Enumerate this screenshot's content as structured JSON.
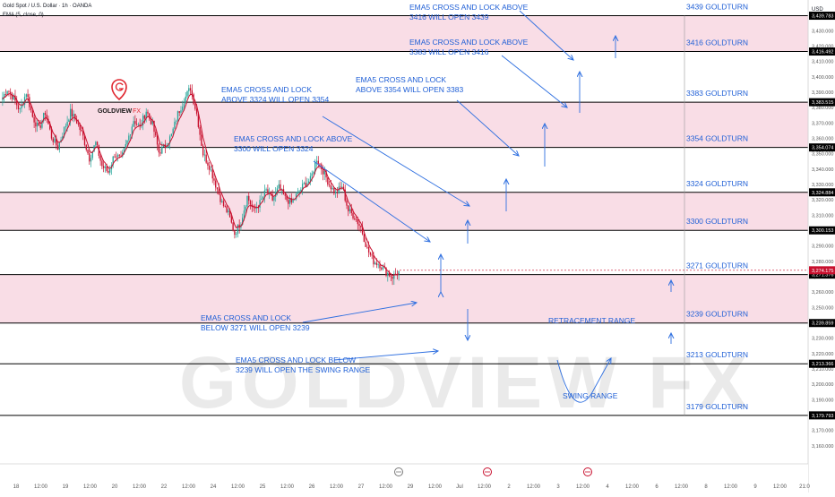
{
  "header": {
    "symbol_line": "Gold Spot / U.S. Dollar · 1h · OANDA",
    "indicator_line": "EMA (5, close, 0)",
    "currency": "USD"
  },
  "logo": {
    "name_dark": "GOLDVIEW",
    "name_accent": "FX"
  },
  "watermark": "GOLDVIEW FX",
  "colors": {
    "zone_fill": "#f9dde6",
    "candle_up": "#26a69a",
    "candle_down": "#c8102e",
    "line_black": "#000000",
    "annotation_blue": "#2e6fe0",
    "label_blue": "#1f5fd6",
    "logo_red": "#e0262f",
    "watermark": "#d9d9d9"
  },
  "chart_data": {
    "type": "candlestick",
    "ylim": [
      3150,
      3450
    ],
    "yticks": [
      3160,
      3170,
      3180,
      3190,
      3200,
      3210,
      3220,
      3230,
      3240,
      3250,
      3260,
      3270,
      3280,
      3290,
      3300,
      3310,
      3320,
      3330,
      3340,
      3350,
      3360,
      3370,
      3380,
      3390,
      3400,
      3410,
      3420,
      3430,
      3440
    ],
    "x_ticks": [
      "18",
      "12:00",
      "19",
      "12:00",
      "20",
      "12:00",
      "22",
      "12:00",
      "24",
      "12:00",
      "25",
      "12:00",
      "26",
      "12:00",
      "27",
      "12:00",
      "29",
      "12:00",
      "Jul",
      "12:00",
      "2",
      "12:00",
      "3",
      "12:00",
      "4",
      "12:00",
      "6",
      "12:00",
      "8",
      "12:00",
      "9",
      "12:00",
      "21:0"
    ],
    "price_path": [
      3385,
      3392,
      3386,
      3378,
      3390,
      3374,
      3366,
      3377,
      3361,
      3354,
      3366,
      3377,
      3371,
      3361,
      3347,
      3357,
      3342,
      3338,
      3350,
      3346,
      3358,
      3372,
      3367,
      3378,
      3369,
      3351,
      3355,
      3362,
      3376,
      3385,
      3393,
      3376,
      3350,
      3342,
      3330,
      3318,
      3311,
      3298,
      3306,
      3322,
      3313,
      3318,
      3326,
      3320,
      3328,
      3321,
      3318,
      3324,
      3330,
      3333,
      3347,
      3339,
      3330,
      3324,
      3329,
      3313,
      3309,
      3302,
      3288,
      3280,
      3278,
      3273,
      3270,
      3273
    ],
    "levels": [
      {
        "label": "3439 GOLDTURN",
        "price": 3439.783,
        "price_text": "3,439.783"
      },
      {
        "label": "3416 GOLDTURN",
        "price": 3416.492,
        "price_text": "3,416.492"
      },
      {
        "label": "3383 GOLDTURN",
        "price": 3383.515,
        "price_text": "3,383.515"
      },
      {
        "label": "3354 GOLDTURN",
        "price": 3354.074,
        "price_text": "3,354.074"
      },
      {
        "label": "3324 GOLDTURN",
        "price": 3324.884,
        "price_text": "3,324.884"
      },
      {
        "label": "3300 GOLDTURN",
        "price": 3300.153,
        "price_text": "3,300.153"
      },
      {
        "label": "3271 GOLDTURN",
        "price": 3271.376,
        "price_text": "3,271.376"
      },
      {
        "label": "3239 GOLDTURN",
        "price": 3239.859,
        "price_text": "3,239.859"
      },
      {
        "label": "3213 GOLDTURN",
        "price": 3213.366,
        "price_text": "3,213.366"
      },
      {
        "label": "3179 GOLDTURN",
        "price": 3179.793,
        "price_text": "3,179.793"
      }
    ],
    "zones": [
      {
        "from": 3416.492,
        "to": 3439.783
      },
      {
        "from": 3354.074,
        "to": 3383.515
      },
      {
        "from": 3300.153,
        "to": 3324.884
      },
      {
        "from": 3239.859,
        "to": 3271.376
      }
    ],
    "current_price": {
      "price": 3274.175,
      "price_text": "3,274.175"
    },
    "annotations": [
      {
        "line1": "EMA5 CROSS AND LOCK ABOVE",
        "line2": "3416 WILL OPEN 3439"
      },
      {
        "line1": "EMA5 CROSS AND LOCK ABOVE",
        "line2": "3383 WILL OPEN 3416"
      },
      {
        "line1": "EMA5 CROSS AND LOCK",
        "line2": "ABOVE 3354 WILL OPEN 3383"
      },
      {
        "line1": "EMA5 CROSS AND LOCK",
        "line2": "ABOVE 3324 WILL OPEN 3354"
      },
      {
        "line1": "EMA5 CROSS AND LOCK ABOVE",
        "line2": "3300 WILL OPEN 3324"
      },
      {
        "line1": "EMA5 CROSS AND LOCK",
        "line2": "BELOW 3271 WILL OPEN 3239"
      },
      {
        "line1": "EMA5 CROSS AND LOCK BELOW",
        "line2": "3239 WILL OPEN THE SWING RANGE"
      }
    ],
    "range_labels": {
      "retracement": "RETRACEMENT RANGE",
      "swing": "SWING RANGE"
    }
  }
}
